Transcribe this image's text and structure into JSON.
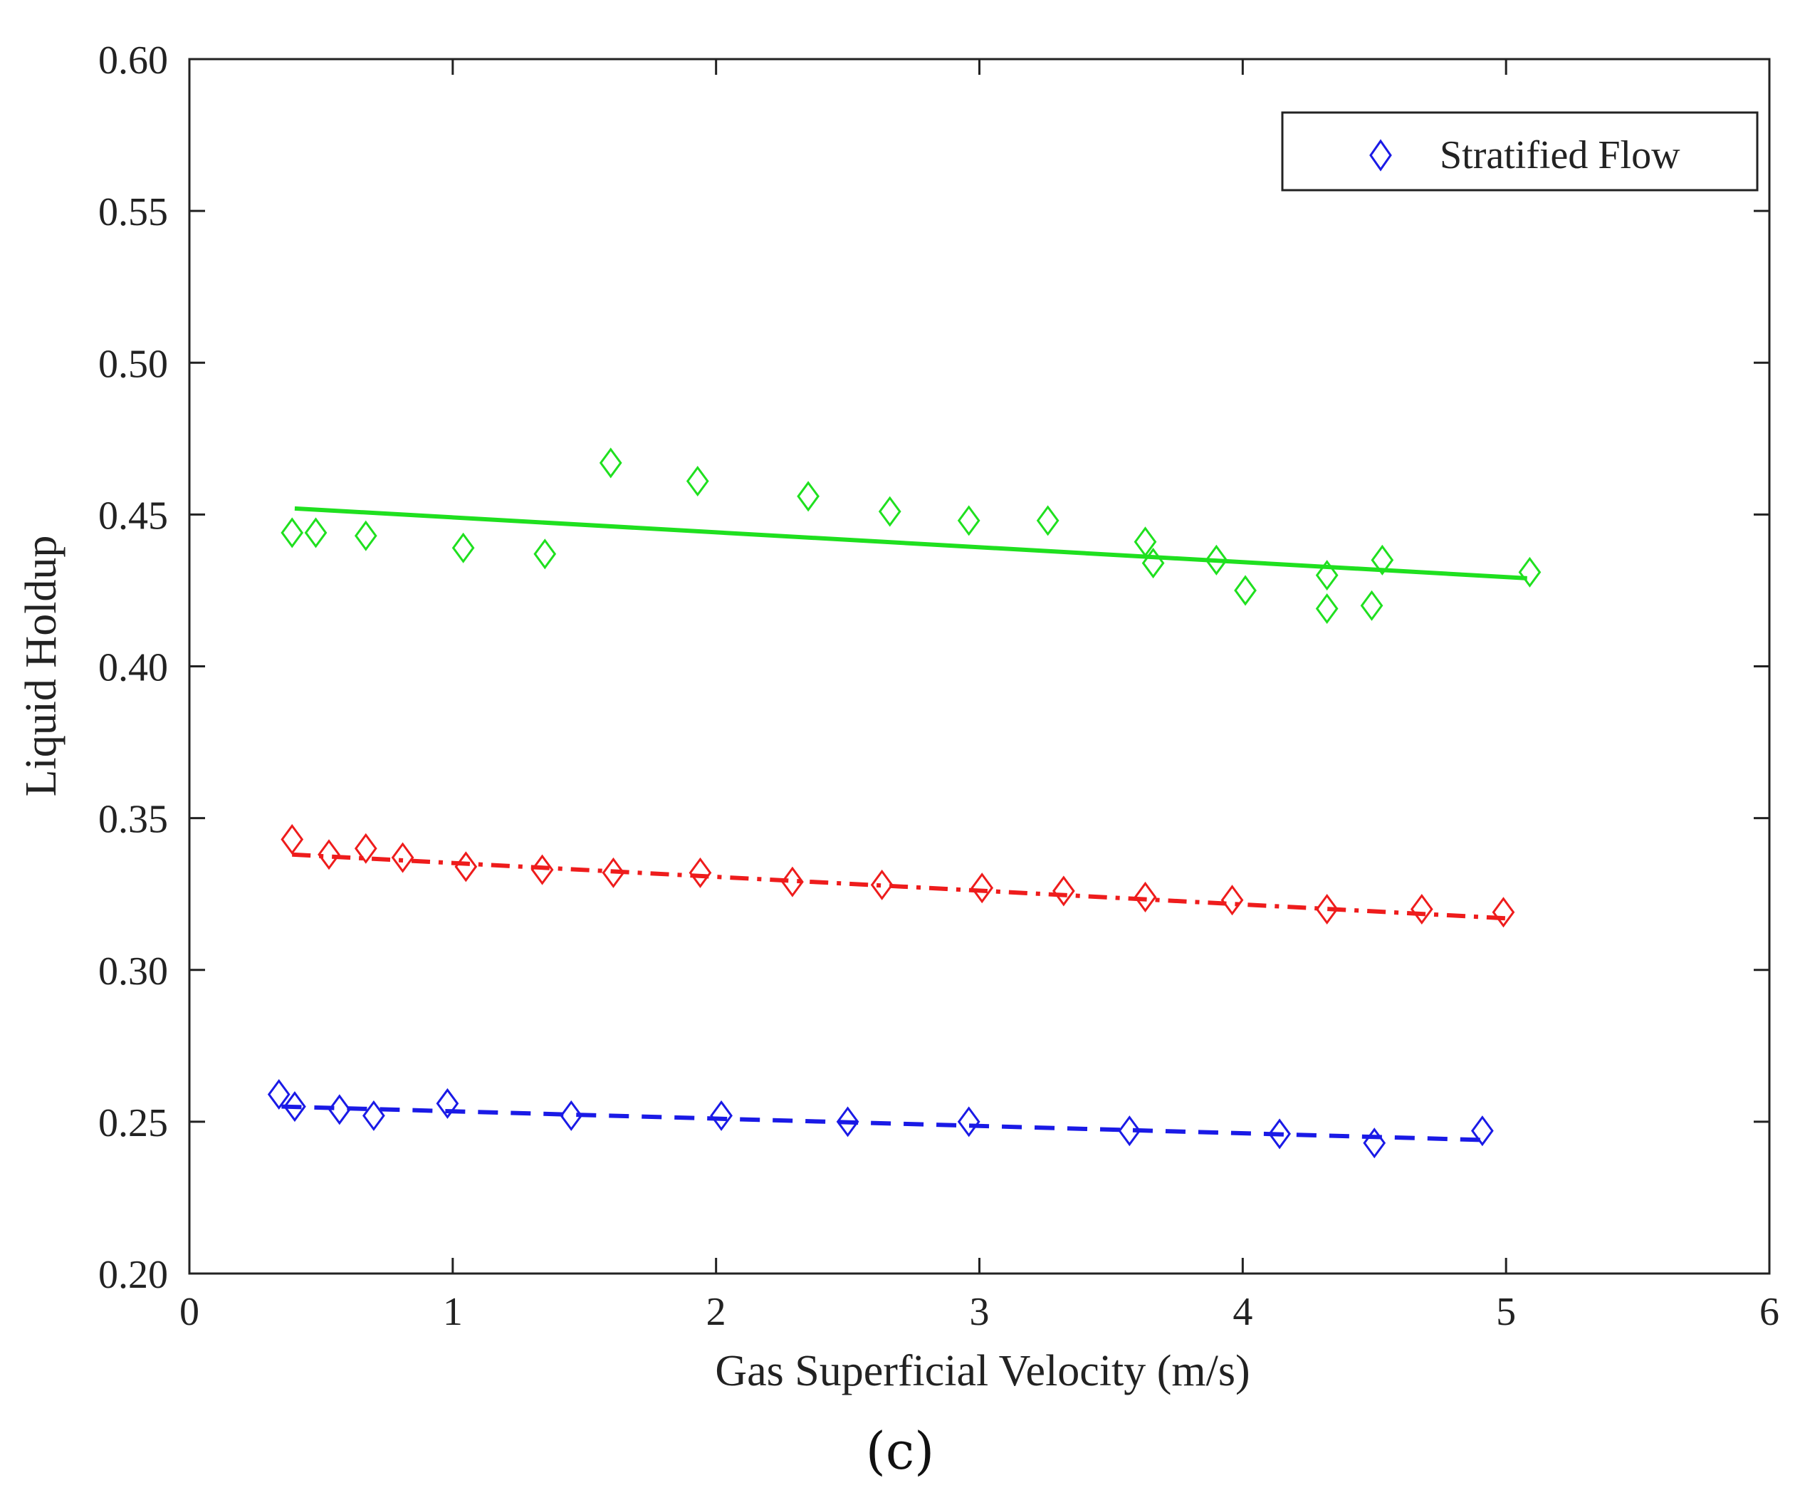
{
  "chart_data": {
    "type": "scatter",
    "title": "",
    "xlabel": "Gas Superficial Velocity (m/s)",
    "ylabel": "Liquid Holdup",
    "xlim": [
      0,
      6
    ],
    "ylim": [
      0.2,
      0.6
    ],
    "xticks": [
      "0",
      "1",
      "2",
      "3",
      "4",
      "5",
      "6"
    ],
    "yticks": [
      "0.20",
      "0.25",
      "0.30",
      "0.35",
      "0.40",
      "0.45",
      "0.50",
      "0.55",
      "0.60"
    ],
    "grid": false,
    "legend": {
      "position": "top-right",
      "entries": [
        "Stratified Flow"
      ]
    },
    "series": [
      {
        "name": "green",
        "color": "#1fe01f",
        "points": [
          {
            "x": 0.39,
            "y": 0.444
          },
          {
            "x": 0.48,
            "y": 0.444
          },
          {
            "x": 0.67,
            "y": 0.443
          },
          {
            "x": 1.04,
            "y": 0.439
          },
          {
            "x": 1.35,
            "y": 0.437
          },
          {
            "x": 1.6,
            "y": 0.467
          },
          {
            "x": 1.93,
            "y": 0.461
          },
          {
            "x": 2.35,
            "y": 0.456
          },
          {
            "x": 2.66,
            "y": 0.451
          },
          {
            "x": 2.96,
            "y": 0.448
          },
          {
            "x": 3.26,
            "y": 0.448
          },
          {
            "x": 3.63,
            "y": 0.441
          },
          {
            "x": 3.66,
            "y": 0.434
          },
          {
            "x": 3.9,
            "y": 0.435
          },
          {
            "x": 4.01,
            "y": 0.425
          },
          {
            "x": 4.32,
            "y": 0.43
          },
          {
            "x": 4.32,
            "y": 0.419
          },
          {
            "x": 4.49,
            "y": 0.42
          },
          {
            "x": 4.53,
            "y": 0.435
          },
          {
            "x": 5.09,
            "y": 0.431
          }
        ],
        "fit": {
          "x": [
            0.4,
            5.08
          ],
          "y": [
            0.452,
            0.429
          ],
          "style": "solid"
        }
      },
      {
        "name": "red",
        "color": "#ee1c1c",
        "points": [
          {
            "x": 0.39,
            "y": 0.343
          },
          {
            "x": 0.53,
            "y": 0.338
          },
          {
            "x": 0.67,
            "y": 0.34
          },
          {
            "x": 0.81,
            "y": 0.337
          },
          {
            "x": 1.05,
            "y": 0.334
          },
          {
            "x": 1.34,
            "y": 0.333
          },
          {
            "x": 1.61,
            "y": 0.332
          },
          {
            "x": 1.94,
            "y": 0.332
          },
          {
            "x": 2.29,
            "y": 0.329
          },
          {
            "x": 2.63,
            "y": 0.328
          },
          {
            "x": 3.01,
            "y": 0.327
          },
          {
            "x": 3.32,
            "y": 0.326
          },
          {
            "x": 3.63,
            "y": 0.324
          },
          {
            "x": 3.96,
            "y": 0.323
          },
          {
            "x": 4.32,
            "y": 0.32
          },
          {
            "x": 4.68,
            "y": 0.32
          },
          {
            "x": 4.99,
            "y": 0.319
          }
        ],
        "fit": {
          "x": [
            0.39,
            5.0
          ],
          "y": [
            0.338,
            0.317
          ],
          "style": "dash-dot"
        }
      },
      {
        "name": "blue",
        "color": "#1a1ae6",
        "points": [
          {
            "x": 0.34,
            "y": 0.259
          },
          {
            "x": 0.4,
            "y": 0.255
          },
          {
            "x": 0.57,
            "y": 0.254
          },
          {
            "x": 0.7,
            "y": 0.252
          },
          {
            "x": 0.98,
            "y": 0.256
          },
          {
            "x": 1.45,
            "y": 0.252
          },
          {
            "x": 2.02,
            "y": 0.252
          },
          {
            "x": 2.5,
            "y": 0.25
          },
          {
            "x": 2.96,
            "y": 0.25
          },
          {
            "x": 3.57,
            "y": 0.247
          },
          {
            "x": 4.14,
            "y": 0.246
          },
          {
            "x": 4.5,
            "y": 0.243
          },
          {
            "x": 4.91,
            "y": 0.247
          }
        ],
        "fit": {
          "x": [
            0.35,
            4.91
          ],
          "y": [
            0.255,
            0.244
          ],
          "style": "dashed"
        }
      }
    ],
    "caption": "(c)"
  }
}
